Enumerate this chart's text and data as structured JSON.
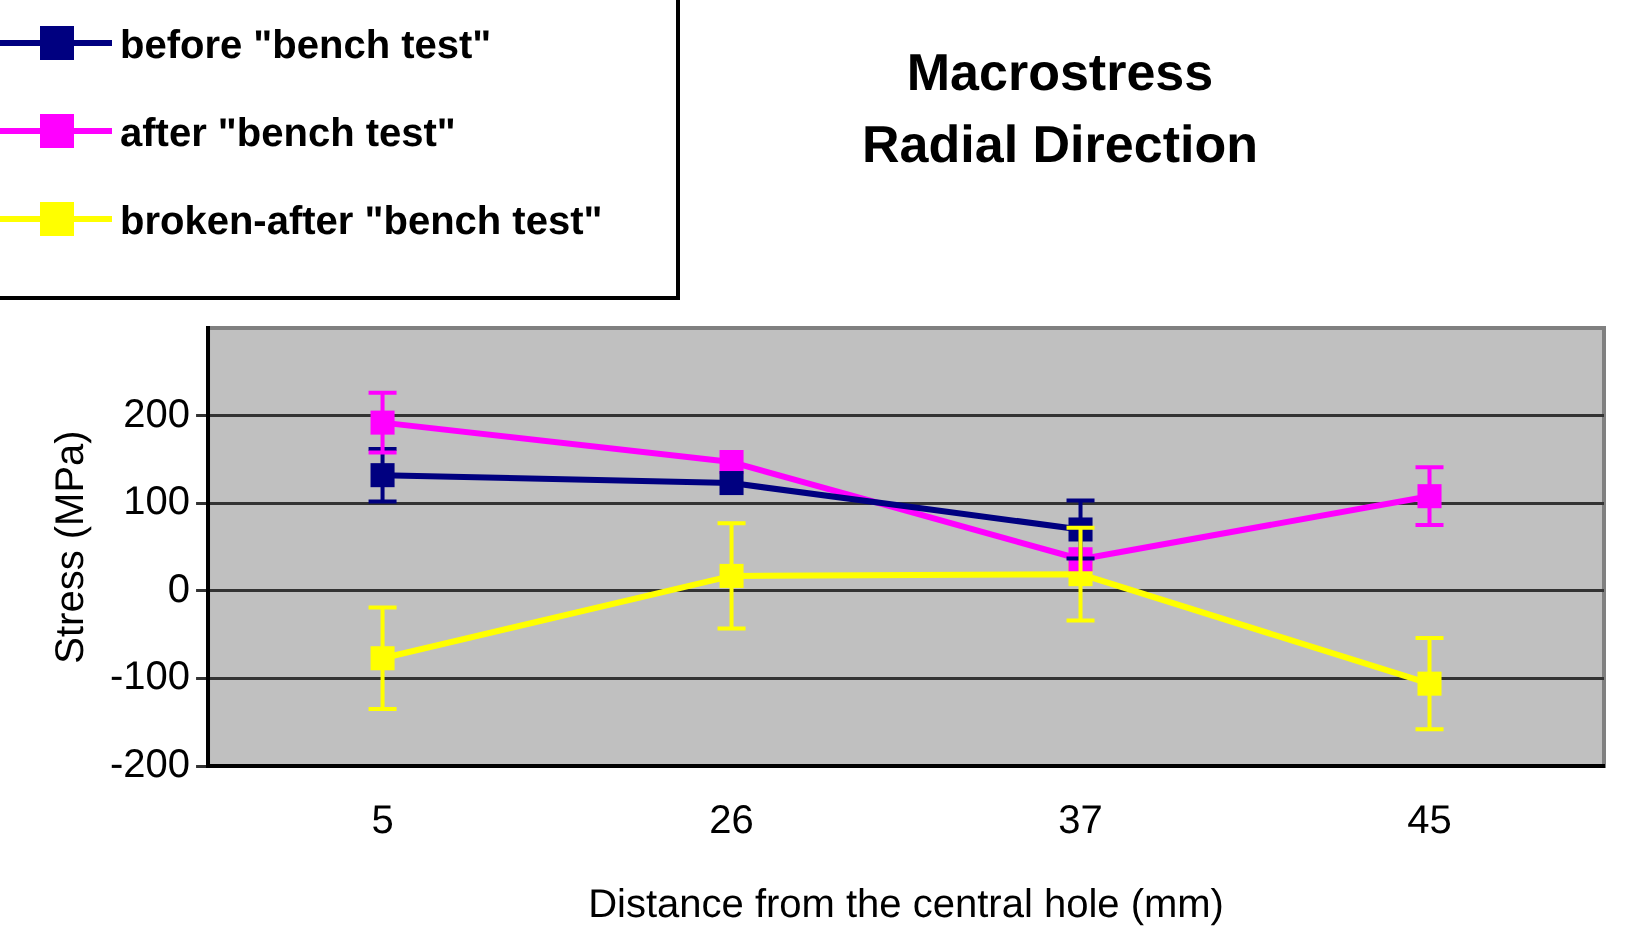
{
  "chart_data": {
    "type": "line",
    "title": "Macrostress\nRadial Direction",
    "xlabel": "Distance from the central hole (mm)",
    "ylabel": "Stress (MPa)",
    "categories": [
      "5",
      "26",
      "37",
      "45"
    ],
    "series": [
      {
        "name": "before \"bench test\"",
        "color": "#000080",
        "values": [
          132,
          123,
          70,
          null
        ],
        "errors": [
          30,
          null,
          33,
          null
        ]
      },
      {
        "name": "after \"bench test\"",
        "color": "#ff00ff",
        "values": [
          192,
          147,
          36,
          108
        ],
        "errors": [
          34,
          null,
          null,
          33
        ]
      },
      {
        "name": "broken-after \"bench test\"",
        "color": "#ffff00",
        "values": [
          -77,
          17,
          19,
          -106
        ],
        "errors": [
          58,
          60,
          53,
          52
        ]
      }
    ],
    "ylim": [
      -200,
      300
    ],
    "yticks": [
      -200,
      -100,
      0,
      100,
      200
    ],
    "grid": "y",
    "legend": "top left",
    "marker": "square",
    "line_style": "solid"
  }
}
